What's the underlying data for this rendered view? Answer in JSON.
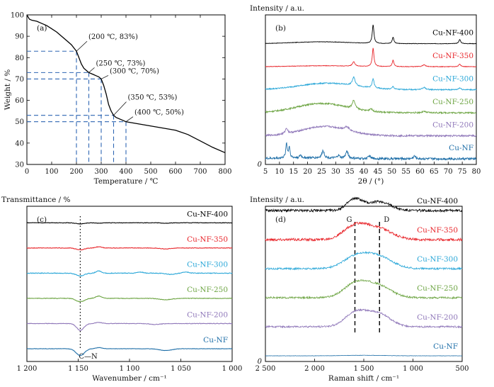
{
  "chart_data": [
    {
      "panel": "(a)",
      "type": "line",
      "xlabel": "Temperature / ℃",
      "ylabel": "Weight / %",
      "xlim": [
        0,
        800
      ],
      "ylim": [
        30,
        100
      ],
      "xticks": [
        0,
        100,
        200,
        300,
        400,
        500,
        600,
        700,
        800
      ],
      "yticks": [
        30,
        40,
        50,
        60,
        70,
        80,
        90,
        100
      ],
      "series": [
        {
          "color": "#000000",
          "x": [
            0,
            10,
            20,
            40,
            60,
            80,
            100,
            120,
            140,
            160,
            180,
            190,
            200,
            210,
            220,
            230,
            240,
            250,
            260,
            270,
            280,
            290,
            300,
            310,
            320,
            330,
            340,
            350,
            360,
            370,
            380,
            400,
            450,
            500,
            550,
            600,
            650,
            700,
            750,
            800
          ],
          "y": [
            100,
            98,
            97.5,
            97,
            96,
            95,
            93.5,
            92,
            90,
            88,
            86,
            84.5,
            83,
            80,
            77,
            75,
            74,
            73,
            72.5,
            72,
            71.5,
            71,
            70,
            67,
            63,
            58,
            55,
            53,
            52,
            51.5,
            51,
            50,
            49,
            48,
            47,
            46,
            44,
            41,
            38,
            35.5
          ]
        }
      ],
      "annotations": [
        {
          "label": "(200 ℃, 83%)",
          "x": 200,
          "y": 83
        },
        {
          "label": "(250 ℃, 73%)",
          "x": 250,
          "y": 73
        },
        {
          "label": "(300 ℃, 70%)",
          "x": 300,
          "y": 70
        },
        {
          "label": "(350 ℃, 53%)",
          "x": 350,
          "y": 53
        },
        {
          "label": "(400 ℃, 50%)",
          "x": 400,
          "y": 50
        }
      ]
    },
    {
      "panel": "(b)",
      "type": "line",
      "ylabel": "Intensity / a.u.",
      "xlabel": "2θ / (°)",
      "xlim": [
        5,
        80
      ],
      "xticks": [
        5,
        10,
        15,
        20,
        25,
        30,
        35,
        40,
        45,
        50,
        55,
        60,
        65,
        70,
        75,
        80
      ],
      "yticks": [
        0
      ],
      "baseline_zero_label": "0",
      "series": [
        {
          "name": "Cu-NF-400",
          "color": "#000000",
          "offset": 6,
          "amorph": [
            [
              25,
              0.1,
              10
            ]
          ],
          "peaks": [
            [
              43.3,
              1.0,
              0.35
            ],
            [
              50.4,
              0.35,
              0.35
            ],
            [
              74.1,
              0.22,
              0.4
            ]
          ],
          "noise": 0.012
        },
        {
          "name": "Cu-NF-350",
          "color": "#e8262b",
          "offset": 5,
          "amorph": [
            [
              25,
              0.05,
              10
            ]
          ],
          "peaks": [
            [
              36.4,
              0.25,
              0.5
            ],
            [
              43.3,
              1.0,
              0.35
            ],
            [
              50.4,
              0.35,
              0.35
            ],
            [
              61.4,
              0.1,
              0.6
            ],
            [
              74.1,
              0.15,
              0.4
            ]
          ],
          "noise": 0.015
        },
        {
          "name": "Cu-NF-300",
          "color": "#2aa7d8",
          "offset": 4,
          "amorph": [
            [
              27,
              0.35,
              10
            ]
          ],
          "peaks": [
            [
              36.4,
              0.45,
              0.6
            ],
            [
              43.3,
              0.5,
              0.4
            ],
            [
              50.4,
              0.15,
              0.4
            ],
            [
              61.4,
              0.12,
              0.7
            ],
            [
              74.1,
              0.1,
              0.5
            ]
          ],
          "noise": 0.03
        },
        {
          "name": "Cu-NF-250",
          "color": "#6ea544",
          "offset": 3,
          "amorph": [
            [
              25,
              0.5,
              9
            ]
          ],
          "peaks": [
            [
              36.4,
              0.45,
              0.6
            ],
            [
              42.5,
              0.15,
              0.6
            ],
            [
              61.4,
              0.06,
              0.8
            ]
          ],
          "noise": 0.04
        },
        {
          "name": "Cu-NF-200",
          "color": "#8f77b9",
          "offset": 2,
          "amorph": [
            [
              26,
              0.5,
              8
            ]
          ],
          "peaks": [
            [
              12.5,
              0.3,
              0.5
            ],
            [
              34,
              0.2,
              1.0
            ]
          ],
          "noise": 0.045
        },
        {
          "name": "Cu-NF",
          "color": "#1f6fa8",
          "offset": 1,
          "amorph": [
            [
              20,
              0.05,
              10
            ]
          ],
          "peaks": [
            [
              12.5,
              0.8,
              0.3
            ],
            [
              13.5,
              0.6,
              0.3
            ],
            [
              17.5,
              0.15,
              0.4
            ],
            [
              25.5,
              0.4,
              0.5
            ],
            [
              31,
              0.15,
              0.5
            ],
            [
              34,
              0.4,
              0.5
            ],
            [
              42,
              0.15,
              0.5
            ],
            [
              58,
              0.15,
              0.5
            ]
          ],
          "noise": 0.06
        }
      ]
    },
    {
      "panel": "(c)",
      "type": "line",
      "ylabel": "Transmittance / %",
      "xlabel": "Wavenumber / cm⁻¹",
      "xlim": [
        1200,
        1000
      ],
      "xticks": [
        1200,
        1150,
        1100,
        1050,
        1000
      ],
      "xtick_labels": [
        "1 200",
        "1 150",
        "1 100",
        "1 050",
        "1 000"
      ],
      "annotation": "C—N",
      "marker_x": 1148,
      "series": [
        {
          "name": "Cu-NF-400",
          "color": "#000000",
          "offset": 6,
          "dips": [
            [
              1148,
              0.05,
              4
            ],
            [
              1130,
              0.02,
              3
            ],
            [
              1065,
              0.02,
              4
            ]
          ],
          "noise": 0.01
        },
        {
          "name": "Cu-NF-350",
          "color": "#e8262b",
          "offset": 5,
          "dips": [
            [
              1148,
              0.08,
              4
            ],
            [
              1130,
              -0.05,
              3
            ],
            [
              1065,
              0.04,
              5
            ]
          ],
          "noise": 0.012
        },
        {
          "name": "Cu-NF-300",
          "color": "#2aa7d8",
          "offset": 4,
          "dips": [
            [
              1148,
              0.12,
              4
            ],
            [
              1130,
              -0.1,
              2.5
            ],
            [
              1090,
              -0.05,
              3
            ],
            [
              1060,
              0.05,
              5
            ],
            [
              1045,
              -0.05,
              3
            ]
          ],
          "noise": 0.015
        },
        {
          "name": "Cu-NF-250",
          "color": "#6ea544",
          "offset": 3,
          "dips": [
            [
              1148,
              0.15,
              4
            ],
            [
              1130,
              -0.1,
              3
            ],
            [
              1065,
              0.06,
              6
            ]
          ],
          "noise": 0.012
        },
        {
          "name": "Cu-NF-200",
          "color": "#8f77b9",
          "offset": 2,
          "dips": [
            [
              1148,
              0.3,
              3.5
            ],
            [
              1130,
              -0.05,
              3
            ],
            [
              1075,
              0.04,
              5
            ]
          ],
          "noise": 0.012
        },
        {
          "name": "Cu-NF",
          "color": "#1f6fa8",
          "offset": 1,
          "dips": [
            [
              1148,
              0.3,
              4
            ],
            [
              1130,
              -0.05,
              3
            ],
            [
              1065,
              0.08,
              6
            ]
          ],
          "noise": 0.008
        }
      ]
    },
    {
      "panel": "(d)",
      "type": "line",
      "ylabel": "Intensity / a.u.",
      "xlabel": "Raman shift / cm⁻¹",
      "xlim": [
        2500,
        500
      ],
      "xticks": [
        2500,
        2000,
        1500,
        1000,
        500
      ],
      "xtick_labels": [
        "2 500",
        "2 000",
        "1 500",
        "1 000",
        "500"
      ],
      "yticks": [
        0
      ],
      "band_labels": [
        {
          "label": "G",
          "x": 1590
        },
        {
          "label": "D",
          "x": 1340
        }
      ],
      "series": [
        {
          "name": "Cu-NF-400",
          "color": "#000000",
          "offset": 5,
          "bands": [
            [
              1590,
              0.45,
              80
            ],
            [
              1340,
              0.35,
              110
            ]
          ],
          "noise": 0.05
        },
        {
          "name": "Cu-NF-350",
          "color": "#e8262b",
          "offset": 4,
          "bands": [
            [
              1580,
              0.55,
              120
            ],
            [
              1340,
              0.4,
              130
            ]
          ],
          "noise": 0.05
        },
        {
          "name": "Cu-NF-300",
          "color": "#2aa7d8",
          "offset": 3,
          "bands": [
            [
              1580,
              0.45,
              130
            ],
            [
              1350,
              0.45,
              140
            ]
          ],
          "noise": 0.035
        },
        {
          "name": "Cu-NF-250",
          "color": "#6ea544",
          "offset": 2,
          "bands": [
            [
              1580,
              0.55,
              120
            ],
            [
              1350,
              0.45,
              130
            ]
          ],
          "noise": 0.035
        },
        {
          "name": "Cu-NF-200",
          "color": "#8f77b9",
          "offset": 1,
          "bands": [
            [
              1580,
              0.55,
              110
            ],
            [
              1350,
              0.5,
              120
            ]
          ],
          "noise": 0.035
        },
        {
          "name": "Cu-NF",
          "color": "#1f6fa8",
          "offset": 0,
          "bands": [
            [
              1500,
              0.02,
              200
            ]
          ],
          "noise": 0.006
        }
      ]
    }
  ]
}
